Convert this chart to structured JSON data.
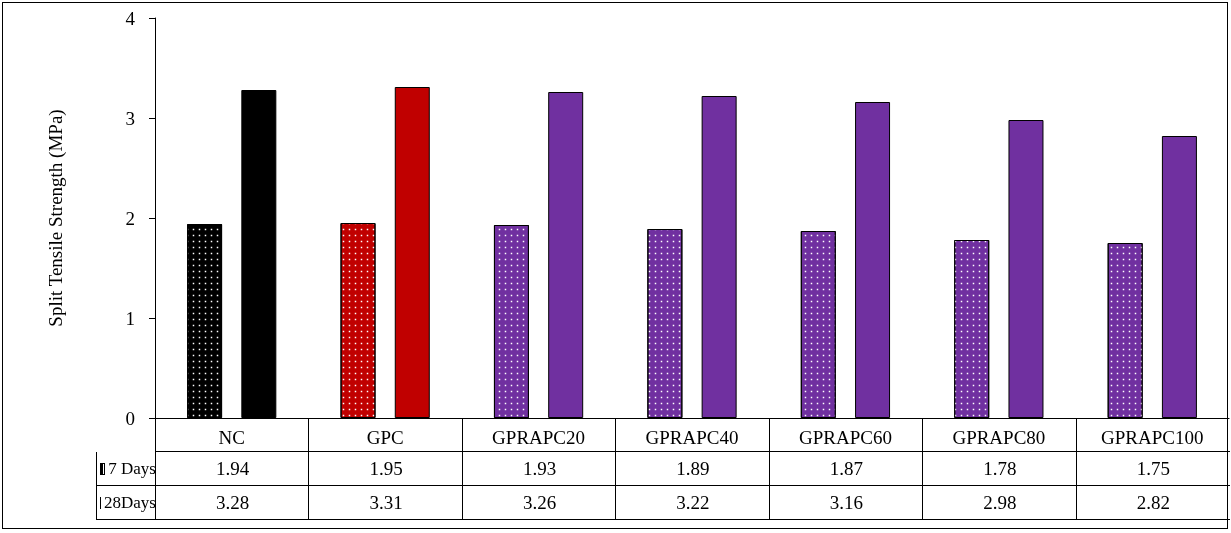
{
  "chart_data": {
    "type": "bar",
    "ylabel": "Split Tensile Strength (MPa)",
    "categories": [
      "NC",
      "GPC",
      "GPRAPC20",
      "GPRAPC40",
      "GPRAPC60",
      "GPRAPC80",
      "GPRAPC100"
    ],
    "series": [
      {
        "name": "7 Days",
        "colors": [
          "#000000",
          "#c00000",
          "#7030a0",
          "#7030a0",
          "#7030a0",
          "#7030a0",
          "#7030a0"
        ],
        "values": [
          1.94,
          1.95,
          1.93,
          1.89,
          1.87,
          1.78,
          1.75
        ]
      },
      {
        "name": "28Days",
        "colors": [
          "#000000",
          "#c00000",
          "#7030a0",
          "#7030a0",
          "#7030a0",
          "#7030a0",
          "#7030a0"
        ],
        "values": [
          3.28,
          3.31,
          3.26,
          3.22,
          3.16,
          2.98,
          2.82
        ]
      }
    ],
    "ylim": [
      0,
      4
    ],
    "yticks": [
      0,
      1,
      2,
      3,
      4
    ],
    "grid": false,
    "legend": "bottom left",
    "data_labels": true
  }
}
